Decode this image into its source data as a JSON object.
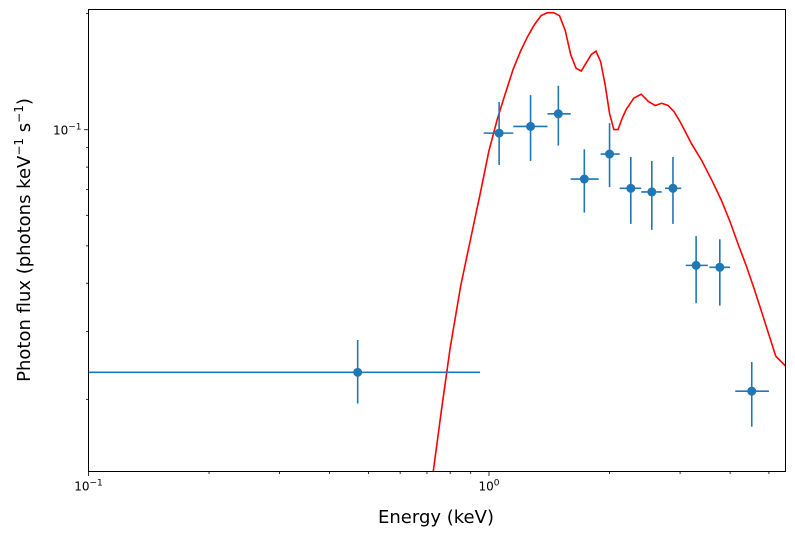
{
  "chart_data": {
    "type": "scatter",
    "title": "",
    "xlabel": "Energy (keV)",
    "ylabel_parts": {
      "lead": "Photon flux (photons keV",
      "exp1": "−1",
      "mid": " s",
      "exp2": "−1",
      "tail": ")"
    },
    "xscale": "log",
    "yscale": "log",
    "xlim": [
      0.1,
      5.5
    ],
    "ylim": [
      0.013,
      0.205
    ],
    "grid": false,
    "x_ticks": [
      {
        "value": 0.1,
        "base": "10",
        "exp": "−1"
      },
      {
        "value": 1,
        "base": "10",
        "exp": "0"
      }
    ],
    "y_ticks": [
      {
        "value": 0.1,
        "base": "10",
        "exp": "−1"
      }
    ],
    "series": [
      {
        "kind": "errorbar",
        "color": "#1f77b4",
        "points": [
          {
            "x": 0.47,
            "y": 0.0235,
            "xlo": 0.1,
            "xhi": 0.95,
            "ylo": 0.0195,
            "yhi": 0.0285
          },
          {
            "x": 1.06,
            "y": 0.098,
            "xlo": 0.97,
            "xhi": 1.15,
            "ylo": 0.081,
            "yhi": 0.118
          },
          {
            "x": 1.27,
            "y": 0.102,
            "xlo": 1.15,
            "xhi": 1.4,
            "ylo": 0.083,
            "yhi": 0.123
          },
          {
            "x": 1.49,
            "y": 0.11,
            "xlo": 1.4,
            "xhi": 1.6,
            "ylo": 0.091,
            "yhi": 0.13
          },
          {
            "x": 1.73,
            "y": 0.0745,
            "xlo": 1.6,
            "xhi": 1.88,
            "ylo": 0.061,
            "yhi": 0.089
          },
          {
            "x": 2.0,
            "y": 0.0865,
            "xlo": 1.9,
            "xhi": 2.12,
            "ylo": 0.071,
            "yhi": 0.104
          },
          {
            "x": 2.26,
            "y": 0.0705,
            "xlo": 2.12,
            "xhi": 2.4,
            "ylo": 0.057,
            "yhi": 0.085
          },
          {
            "x": 2.55,
            "y": 0.069,
            "xlo": 2.4,
            "xhi": 2.7,
            "ylo": 0.055,
            "yhi": 0.083
          },
          {
            "x": 2.88,
            "y": 0.0705,
            "xlo": 2.75,
            "xhi": 3.02,
            "ylo": 0.057,
            "yhi": 0.085
          },
          {
            "x": 3.29,
            "y": 0.0445,
            "xlo": 3.1,
            "xhi": 3.52,
            "ylo": 0.0355,
            "yhi": 0.053
          },
          {
            "x": 3.77,
            "y": 0.044,
            "xlo": 3.55,
            "xhi": 4.0,
            "ylo": 0.035,
            "yhi": 0.052
          },
          {
            "x": 4.53,
            "y": 0.021,
            "xlo": 4.12,
            "xhi": 5.0,
            "ylo": 0.017,
            "yhi": 0.025
          }
        ]
      },
      {
        "kind": "line",
        "color": "#ff0000",
        "x": [
          0.72,
          0.76,
          0.8,
          0.85,
          0.9,
          0.95,
          1.0,
          1.05,
          1.1,
          1.15,
          1.2,
          1.25,
          1.3,
          1.35,
          1.4,
          1.45,
          1.5,
          1.55,
          1.6,
          1.65,
          1.7,
          1.75,
          1.8,
          1.85,
          1.9,
          1.95,
          2.0,
          2.05,
          2.1,
          2.15,
          2.2,
          2.3,
          2.4,
          2.5,
          2.6,
          2.7,
          2.8,
          2.9,
          3.0,
          3.1,
          3.2,
          3.4,
          3.6,
          3.8,
          4.0,
          4.2,
          4.4,
          4.6,
          4.8,
          5.0,
          5.2,
          5.5
        ],
        "y": [
          0.0122,
          0.0186,
          0.0272,
          0.0394,
          0.0522,
          0.068,
          0.0883,
          0.1069,
          0.1247,
          0.1439,
          0.1602,
          0.1748,
          0.1876,
          0.1977,
          0.2011,
          0.2011,
          0.1976,
          0.1809,
          0.1565,
          0.1443,
          0.142,
          0.1492,
          0.1566,
          0.1599,
          0.1501,
          0.1308,
          0.1102,
          0.1001,
          0.1001,
          0.107,
          0.1128,
          0.1208,
          0.1236,
          0.1184,
          0.1156,
          0.1171,
          0.1156,
          0.1113,
          0.1049,
          0.0983,
          0.0922,
          0.0831,
          0.074,
          0.0658,
          0.0577,
          0.0501,
          0.0441,
          0.0385,
          0.0336,
          0.0294,
          0.0259,
          0.0244
        ]
      }
    ]
  }
}
